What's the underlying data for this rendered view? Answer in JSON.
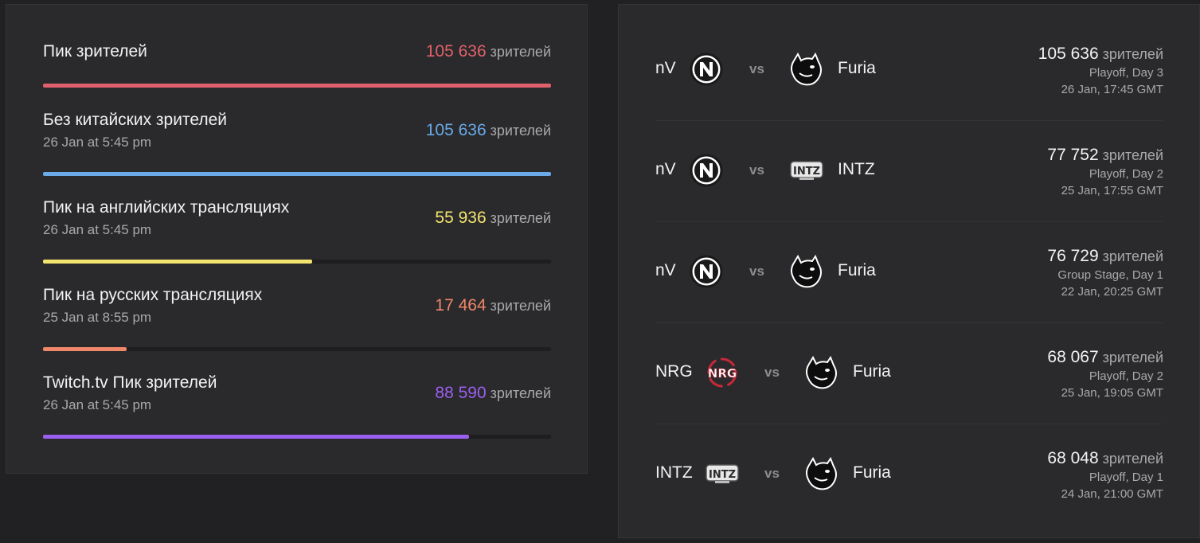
{
  "colors": {
    "peak": "#e0616b",
    "no_china": "#6aaae6",
    "english": "#f3e46f",
    "russian": "#f0866a",
    "twitch": "#9b5fef"
  },
  "stats": [
    {
      "title": "Пик зрителей",
      "date": "",
      "value": "105 636",
      "unit": "зрителей",
      "fill": 1.0
    },
    {
      "title": "Без китайских зрителей",
      "date": "26 Jan at 5:45 pm",
      "value": "105 636",
      "unit": "зрителей",
      "fill": 1.0
    },
    {
      "title": "Пик на английских трансляциях",
      "date": "26 Jan at 5:45 pm",
      "value": "55 936",
      "unit": "зрителей",
      "fill": 0.53
    },
    {
      "title": "Пик на русских трансляциях",
      "date": "25 Jan at 8:55 pm",
      "value": "17 464",
      "unit": "зрителей",
      "fill": 0.165
    },
    {
      "title": "Twitch.tv Пик зрителей",
      "date": "26 Jan at 5:45 pm",
      "value": "88 590",
      "unit": "зрителей",
      "fill": 0.839
    }
  ],
  "matches": [
    {
      "team1": "nV",
      "team1_logo": "envy-logo-icon",
      "vs": "vs",
      "team2": "Furia",
      "team2_logo": "furia-panther-logo-icon",
      "viewers": "105 636",
      "unit": "зрителей",
      "stage": "Playoff, Day 3",
      "time": "26 Jan, 17:45 GMT"
    },
    {
      "team1": "nV",
      "team1_logo": "envy-logo-icon",
      "vs": "vs",
      "team2": "INTZ",
      "team2_logo": "intz-logo-icon",
      "viewers": "77 752",
      "unit": "зрителей",
      "stage": "Playoff, Day 2",
      "time": "25 Jan, 17:55 GMT"
    },
    {
      "team1": "nV",
      "team1_logo": "envy-logo-icon",
      "vs": "vs",
      "team2": "Furia",
      "team2_logo": "furia-panther-logo-icon",
      "viewers": "76 729",
      "unit": "зрителей",
      "stage": "Group Stage, Day 1",
      "time": "22 Jan, 20:25 GMT"
    },
    {
      "team1": "NRG",
      "team1_logo": "nrg-logo-icon",
      "vs": "vs",
      "team2": "Furia",
      "team2_logo": "furia-panther-logo-icon",
      "viewers": "68 067",
      "unit": "зрителей",
      "stage": "Playoff, Day 2",
      "time": "25 Jan, 19:05 GMT"
    },
    {
      "team1": "INTZ",
      "team1_logo": "intz-logo-icon",
      "vs": "vs",
      "team2": "Furia",
      "team2_logo": "furia-panther-logo-icon",
      "viewers": "68 048",
      "unit": "зрителей",
      "stage": "Playoff, Day 1",
      "time": "24 Jan, 21:00 GMT"
    }
  ]
}
